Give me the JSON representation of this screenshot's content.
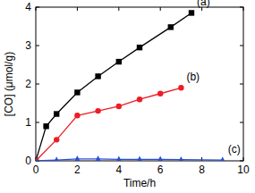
{
  "chart_data": {
    "type": "line",
    "x_label": "Time/h",
    "y_label": "[CO] (μmol/g)",
    "xlim": [
      0,
      10
    ],
    "ylim": [
      0,
      4
    ],
    "xticks": [
      0,
      2,
      4,
      6,
      8,
      10
    ],
    "yticks": [
      0,
      1,
      2,
      3,
      4
    ],
    "grid": false,
    "series": [
      {
        "name": "(a)",
        "color": "#000000",
        "marker": "square",
        "line_style": "solid",
        "x": [
          0,
          0.5,
          1,
          2,
          3,
          4,
          5,
          6.5,
          7.5
        ],
        "values": [
          0,
          0.9,
          1.22,
          1.78,
          2.2,
          2.58,
          2.95,
          3.48,
          3.85
        ]
      },
      {
        "name": "(b)",
        "color": "#ee1c24",
        "marker": "circle",
        "line_style": "solid",
        "x": [
          0,
          1,
          2,
          3,
          4,
          5,
          6,
          7
        ],
        "values": [
          0,
          0.55,
          1.18,
          1.3,
          1.42,
          1.6,
          1.75,
          1.9
        ]
      },
      {
        "name": "(c)",
        "color": "#2a4fd6",
        "marker": "triangle",
        "line_style": "solid",
        "x": [
          0,
          1,
          2,
          3,
          4,
          5,
          6,
          7,
          9
        ],
        "values": [
          0,
          0.02,
          0.05,
          0.05,
          0.04,
          0.04,
          0.04,
          0.03,
          0.02
        ]
      }
    ]
  }
}
